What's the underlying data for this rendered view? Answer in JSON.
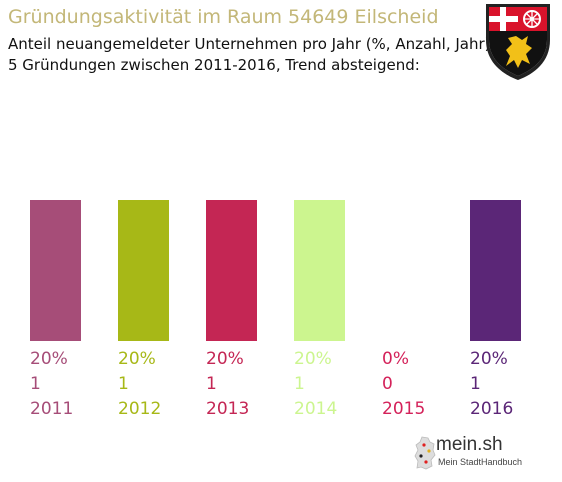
{
  "header": {
    "title": "Gründungsaktivität im Raum 54649 Eilscheid",
    "subtitle_line1": "Anteil neuangemeldeter Unternehmen pro Jahr (%, Anzahl, Jahr)",
    "subtitle_line2": "5 Gründungen zwischen 2011-2016, Trend absteigend:"
  },
  "crest_icon": "coat-of-arms-icon",
  "brand": {
    "name": "mein.sh",
    "tagline": "Mein StadtHandbuch",
    "icon": "germany-map-icon"
  },
  "chart_data": {
    "type": "bar",
    "categories": [
      "2011",
      "2012",
      "2013",
      "2014",
      "2015",
      "2016"
    ],
    "values": [
      1,
      1,
      1,
      1,
      0,
      1
    ],
    "percent_labels": [
      "20%",
      "20%",
      "20%",
      "20%",
      "0%",
      "20%"
    ],
    "count_labels": [
      "1",
      "1",
      "1",
      "1",
      "0",
      "1"
    ],
    "colors": [
      "#a64d78",
      "#a7b817",
      "#c42654",
      "#ccf58f",
      "#d4225a",
      "#5b2677"
    ],
    "ylim": [
      0,
      1
    ]
  }
}
